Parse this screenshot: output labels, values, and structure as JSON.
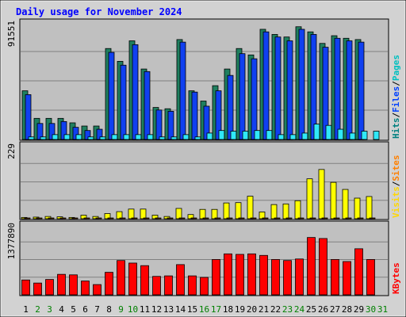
{
  "chart_data": {
    "type": "bar",
    "title": "Daily usage for November 2024",
    "days": [
      "1",
      "2",
      "3",
      "4",
      "5",
      "6",
      "7",
      "8",
      "9",
      "10",
      "11",
      "12",
      "13",
      "14",
      "15",
      "16",
      "17",
      "18",
      "19",
      "20",
      "21",
      "22",
      "23",
      "24",
      "25",
      "26",
      "27",
      "28",
      "29",
      "30",
      "31"
    ],
    "weekend_days": [
      "2",
      "3",
      "9",
      "10",
      "16",
      "17",
      "23",
      "24",
      "30",
      "31"
    ],
    "panels": [
      {
        "id": "hits",
        "max_label": "91551",
        "ymax": 91551,
        "side_labels": [
          {
            "text": "Hits",
            "color": "#008080"
          },
          {
            "text": "/",
            "color": "#000000"
          },
          {
            "text": "Files",
            "color": "#0040ff"
          },
          {
            "text": "/",
            "color": "#000000"
          },
          {
            "text": "Pages",
            "color": "#00c0c0"
          }
        ],
        "series": [
          {
            "name": "Hits",
            "color": "#1f7f5f",
            "values": [
              38000,
              16500,
              16500,
              16500,
              13000,
              10500,
              10500,
              71000,
              61000,
              77000,
              55000,
              25000,
              24000,
              78000,
              38000,
              30000,
              42000,
              55000,
              71000,
              66000,
              86000,
              82000,
              80000,
              88000,
              84000,
              75000,
              81000,
              79000,
              78000,
              0,
              0
            ]
          },
          {
            "name": "Files",
            "color": "#1040f0",
            "values": [
              35000,
              12500,
              12500,
              14000,
              9500,
              7000,
              8000,
              68000,
              58000,
              74000,
              53000,
              23000,
              22000,
              76000,
              37000,
              26000,
              38000,
              50000,
              67000,
              63000,
              84000,
              80000,
              77000,
              86000,
              82000,
              72000,
              79000,
              77000,
              76000,
              0,
              0
            ]
          },
          {
            "name": "Pages",
            "color": "#30e8f8",
            "values": [
              2000,
              2000,
              3800,
              3800,
              3800,
              2000,
              2000,
              3800,
              3800,
              3800,
              3800,
              2000,
              2000,
              3800,
              2000,
              5000,
              7000,
              6500,
              6500,
              7000,
              7000,
              3800,
              3800,
              5000,
              12000,
              11000,
              8000,
              5000,
              6500,
              6500,
              0
            ]
          }
        ]
      },
      {
        "id": "visits",
        "max_label": "229",
        "ymax": 229,
        "side_labels": [
          {
            "text": "Visits",
            "color": "#ffd700"
          },
          {
            "text": "/",
            "color": "#000000"
          },
          {
            "text": "Sites",
            "color": "#ff8000"
          }
        ],
        "series": [
          {
            "name": "Visits",
            "color": "#ffff00",
            "values": [
              4,
              5,
              7,
              6,
              4,
              11,
              7,
              16,
              22,
              30,
              30,
              11,
              7,
              32,
              13,
              29,
              29,
              49,
              50,
              70,
              21,
              44,
              46,
              56,
              124,
              153,
              113,
              91,
              64,
              69,
              0
            ]
          },
          {
            "name": "Sites",
            "color": "#ff8000",
            "values": [
              2,
              2,
              2,
              2,
              2,
              2,
              2,
              2,
              2,
              2,
              2,
              2,
              2,
              2,
              2,
              2,
              2,
              2,
              2,
              2,
              2,
              2,
              2,
              2,
              2,
              2,
              2,
              2,
              2,
              2,
              0
            ]
          }
        ]
      },
      {
        "id": "kbytes",
        "max_label": "1377890",
        "ymax": 1377890,
        "side_labels": [
          {
            "text": "KBytes",
            "color": "#ff0000"
          }
        ],
        "series": [
          {
            "name": "KBytes",
            "color": "#ff0000",
            "values": [
              290000,
              230000,
              300000,
              400000,
              390000,
              270000,
              200000,
              440000,
              670000,
              620000,
              570000,
              360000,
              370000,
              590000,
              370000,
              340000,
              690000,
              800000,
              790000,
              800000,
              770000,
              690000,
              670000,
              700000,
              1120000,
              1100000,
              690000,
              650000,
              900000,
              690000,
              0
            ]
          }
        ]
      }
    ]
  }
}
